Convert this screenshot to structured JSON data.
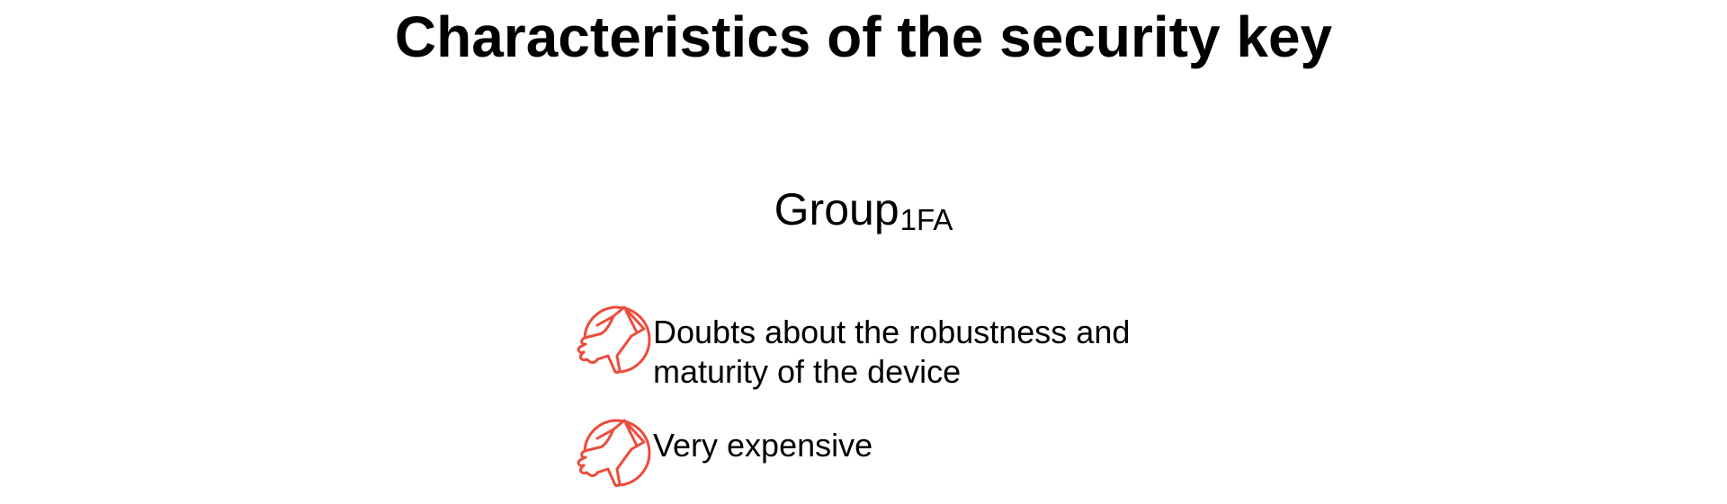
{
  "slide": {
    "title": "Characteristics of the security key"
  },
  "group": {
    "name": "Group",
    "subscript": "1FA"
  },
  "items": [
    {
      "icon": "thumbs-down-icon",
      "text": "Doubts about the robustness and maturity of the device"
    },
    {
      "icon": "thumbs-down-icon",
      "text": "Very expensive"
    }
  ],
  "colors": {
    "icon": "#ee4b3b",
    "text": "#000000",
    "background": "#ffffff"
  }
}
